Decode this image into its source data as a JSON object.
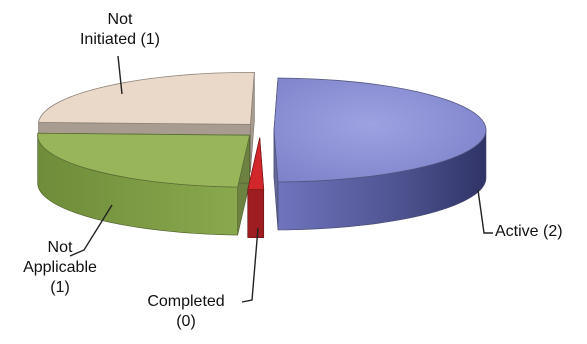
{
  "chart_data": {
    "type": "pie",
    "style": "3d-exploded",
    "slices": [
      {
        "key": "active",
        "label_lines": [
          "Active (2)"
        ],
        "category": "Active",
        "value": 2,
        "color": "#8b90d6"
      },
      {
        "key": "completed",
        "label_lines": [
          "Completed",
          "(0)"
        ],
        "category": "Completed",
        "value": 0,
        "color": "#d1262a"
      },
      {
        "key": "notapplicable",
        "label_lines": [
          "Not",
          "Applicable",
          "(1)"
        ],
        "category": "Not Applicable",
        "value": 1,
        "color": "#98b55a"
      },
      {
        "key": "notinitiated",
        "label_lines": [
          "Not",
          "Initiated (1)"
        ],
        "category": "Not Initiated",
        "value": 1,
        "color": "#ead9c8"
      }
    ],
    "legend": "none",
    "title": ""
  }
}
